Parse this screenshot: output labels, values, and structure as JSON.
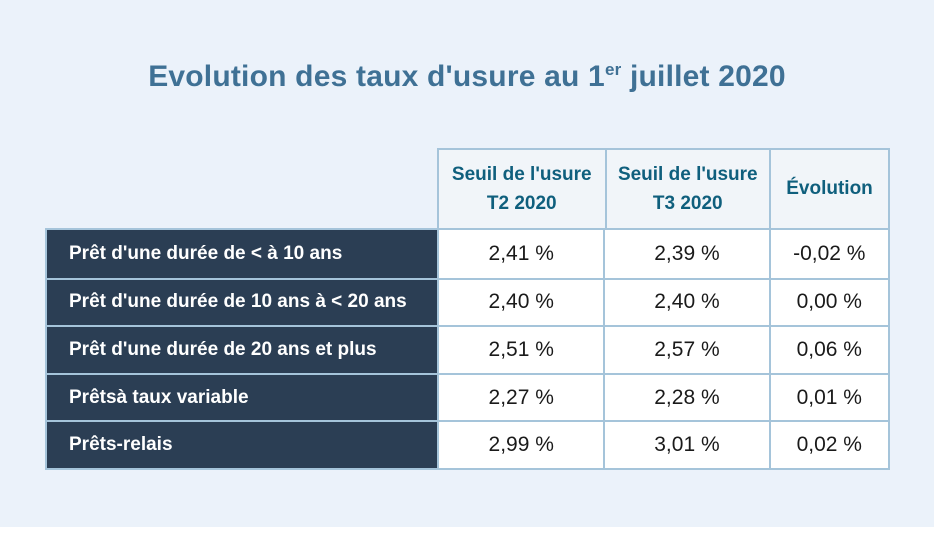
{
  "page": {
    "background_color": "#ebf2fa",
    "bottom_strip_color": "#ffffff"
  },
  "title": {
    "part1": "Evolution des taux d'usure au 1",
    "sup": "er",
    "part2": " juillet 2020",
    "color": "#3f7195"
  },
  "table": {
    "border_color": "#a5c4da",
    "header_bg": "#f1f5f9",
    "header_text_color": "#0f5f7d",
    "label_bg": "#2b3e54",
    "label_text_color": "#ffffff",
    "headers": [
      "Seuil de l'usure\nT2 2020",
      "Seuil de l'usure\nT3 2020",
      "Évolution"
    ],
    "rows": [
      {
        "label": "Prêt d'une durée de < à 10 ans",
        "t2": "2,41 %",
        "t3": "2,39 %",
        "evolution": "-0,02 %"
      },
      {
        "label": "Prêt d'une durée de 10 ans à < 20 ans",
        "t2": "2,40 %",
        "t3": "2,40 %",
        "evolution": "0,00 %"
      },
      {
        "label": "Prêt d'une durée de 20 ans et plus",
        "t2": "2,51 %",
        "t3": "2,57 %",
        "evolution": "0,06 %"
      },
      {
        "label": "Prêtsà taux variable",
        "t2": "2,27 %",
        "t3": "2,28 %",
        "evolution": "0,01 %"
      },
      {
        "label": "Prêts-relais",
        "t2": "2,99 %",
        "t3": "3,01 %",
        "evolution": "0,02 %"
      }
    ]
  },
  "chart_data": {
    "type": "table",
    "title": "Evolution des taux d'usure au 1er juillet 2020",
    "columns": [
      "",
      "Seuil de l'usure T2 2020",
      "Seuil de l'usure T3 2020",
      "Évolution"
    ],
    "rows": [
      [
        "Prêt d'une durée de < à 10 ans",
        "2,41 %",
        "2,39 %",
        "-0,02 %"
      ],
      [
        "Prêt d'une durée de 10 ans à < 20 ans",
        "2,40 %",
        "2,40 %",
        "0,00 %"
      ],
      [
        "Prêt d'une durée de 20 ans et plus",
        "2,51 %",
        "2,57 %",
        "0,06 %"
      ],
      [
        "Prêtsà taux variable",
        "2,27 %",
        "2,28 %",
        "0,01 %"
      ],
      [
        "Prêts-relais",
        "2,99 %",
        "3,01 %",
        "0,02 %"
      ]
    ],
    "categories": [
      "Prêt d'une durée de < à 10 ans",
      "Prêt d'une durée de 10 ans à < 20 ans",
      "Prêt d'une durée de 20 ans et plus",
      "Prêtsà taux variable",
      "Prêts-relais"
    ],
    "series": [
      {
        "name": "Seuil de l'usure T2 2020",
        "values": [
          2.41,
          2.4,
          2.51,
          2.27,
          2.99
        ]
      },
      {
        "name": "Seuil de l'usure T3 2020",
        "values": [
          2.39,
          2.4,
          2.57,
          2.28,
          3.01
        ]
      },
      {
        "name": "Évolution",
        "values": [
          -0.02,
          0.0,
          0.06,
          0.01,
          0.02
        ]
      }
    ],
    "unit": "%"
  }
}
